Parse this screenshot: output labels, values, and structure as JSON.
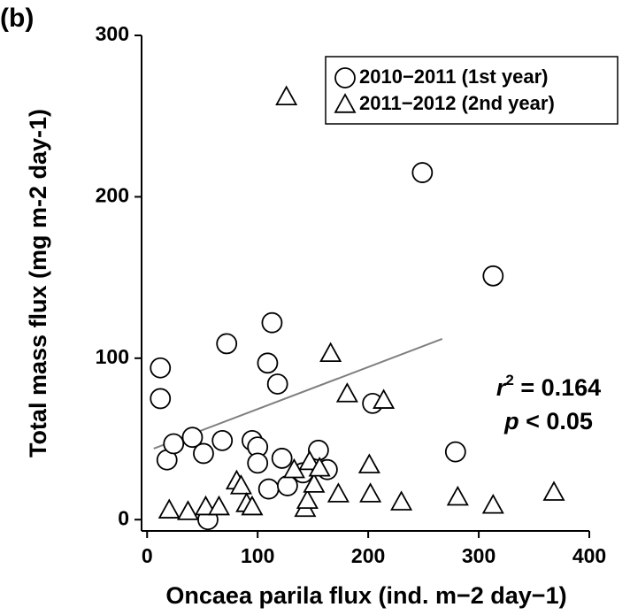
{
  "chart_data": {
    "type": "scatter",
    "panel_label": "(b)",
    "xlabel": "Oncaea parila flux (ind. m−2 day−1)",
    "ylabel": "Total mass flux (mg m-2 day-1)",
    "xlim": [
      -5,
      400
    ],
    "xticks": [
      0,
      100,
      200,
      300,
      400
    ],
    "ylim": [
      -7,
      300
    ],
    "yticks": [
      0,
      100,
      200,
      300
    ],
    "legend": "upper right",
    "series": [
      {
        "name": "2010−2011 (1st year)",
        "marker": "circle",
        "color": "#000000",
        "x": [
          12,
          12,
          18,
          24,
          41,
          51,
          55,
          68,
          72,
          95,
          100,
          100,
          109,
          113,
          118,
          110,
          122,
          127,
          141,
          155,
          163,
          204,
          249,
          279,
          313
        ],
        "values": [
          94,
          75,
          37,
          47,
          51,
          41,
          0,
          49,
          109,
          49,
          45,
          35,
          97,
          122,
          84,
          19,
          38,
          21,
          29,
          43,
          31,
          72,
          215,
          42,
          151
        ]
      },
      {
        "name": "2011−2012 (2nd year)",
        "marker": "triangle",
        "color": "#000000",
        "x": [
          126,
          166,
          181,
          214,
          201,
          202,
          20,
          37,
          53,
          65,
          81,
          85,
          90,
          95,
          133,
          143,
          145,
          147,
          151,
          156,
          173,
          230,
          281,
          313,
          368
        ],
        "values": [
          262,
          103,
          78,
          74,
          34,
          16,
          6,
          5,
          8,
          8,
          24,
          21,
          10,
          8,
          31,
          7,
          12,
          36,
          22,
          32,
          16,
          11,
          14,
          9,
          17
        ]
      }
    ],
    "fit_line": {
      "color": "#808080",
      "x": [
        6,
        267
      ],
      "values": [
        44,
        112
      ]
    },
    "annotations": [
      [
        "r",
        "2",
        " = 0.164"
      ],
      [
        "p",
        " < 0.05"
      ]
    ]
  }
}
